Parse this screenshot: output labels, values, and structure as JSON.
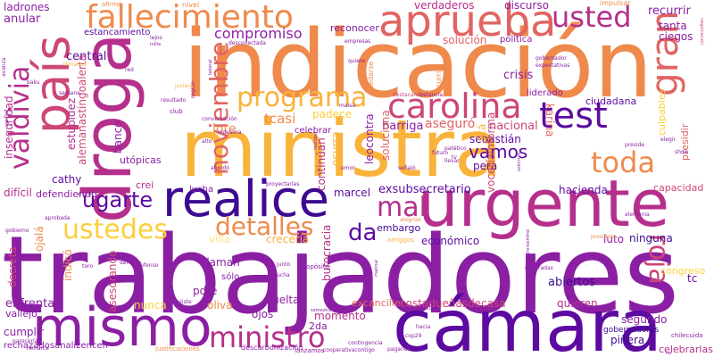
{
  "palette": {
    "darkest": "#3d0a91",
    "dark_purple": "#5c0aa0",
    "purple": "#8b1fa3",
    "magenta": "#b52f8c",
    "pink": "#cc4778",
    "coral": "#e16462",
    "orange": "#ef8a4c",
    "gold": "#f9b33a",
    "yellow": "#fccf3c",
    "pale_yellow": "#fbe585"
  },
  "words": [
    {
      "text": "trabajadores",
      "color": "purple"
    },
    {
      "text": "indicación",
      "color": "orange"
    },
    {
      "text": "ministra",
      "color": "gold"
    },
    {
      "text": "cámara",
      "color": "dark_purple"
    },
    {
      "text": "urgente",
      "color": "magenta"
    },
    {
      "text": "droga",
      "color": "magenta"
    },
    {
      "text": "país",
      "color": "pink"
    },
    {
      "text": "realice",
      "color": "darkest"
    },
    {
      "text": "mismo",
      "color": "purple"
    },
    {
      "text": "aprueba",
      "color": "coral"
    },
    {
      "text": "fallecimiento",
      "color": "orange"
    },
    {
      "text": "carolina",
      "color": "pink"
    },
    {
      "text": "test",
      "color": "dark_purple"
    },
    {
      "text": "toda",
      "color": "orange"
    },
    {
      "text": "programa",
      "color": "gold"
    },
    {
      "text": "gran",
      "color": "coral"
    },
    {
      "text": "usted",
      "color": "magenta"
    },
    {
      "text": "ministro",
      "color": "magenta"
    },
    {
      "text": "roja",
      "color": "pink"
    },
    {
      "text": "valdivia",
      "color": "magenta"
    },
    {
      "text": "noviembre",
      "color": "coral"
    },
    {
      "text": "ustedes",
      "color": "yellow"
    },
    {
      "text": "detalles",
      "color": "orange"
    },
    {
      "text": "mal",
      "color": "magenta"
    },
    {
      "text": "vamos",
      "color": "dark_purple"
    },
    {
      "text": "ugarte",
      "color": "dark_purple"
    },
    {
      "text": "da",
      "color": "dark_purple"
    },
    {
      "text": "compromiso",
      "color": "purple"
    },
    {
      "text": "ladrones",
      "color": "purple"
    },
    {
      "text": "afirmó",
      "color": "orange"
    },
    {
      "text": "nivel",
      "color": "orange"
    },
    {
      "text": "reconocer",
      "color": "purple"
    },
    {
      "text": "discurso",
      "color": "purple"
    },
    {
      "text": "verdaderos",
      "color": "magenta"
    },
    {
      "text": "impulsar",
      "color": "orange"
    },
    {
      "text": "anular",
      "color": "purple"
    },
    {
      "text": "estancamiento",
      "color": "dark_purple"
    },
    {
      "text": "recurrir",
      "color": "purple"
    },
    {
      "text": "tanta",
      "color": "purple"
    },
    {
      "text": "ciegos",
      "color": "purple"
    },
    {
      "text": "solución",
      "color": "coral"
    },
    {
      "text": "política",
      "color": "purple"
    },
    {
      "text": "central",
      "color": "dark_purple"
    },
    {
      "text": "crisis",
      "color": "purple"
    },
    {
      "text": "liderado",
      "color": "purple"
    },
    {
      "text": "ciudadana",
      "color": "dark_purple"
    },
    {
      "text": "tcasi",
      "color": "orange"
    },
    {
      "text": "padece",
      "color": "yellow"
    },
    {
      "text": "aseguró",
      "color": "coral"
    },
    {
      "text": "nacional",
      "color": "pink"
    },
    {
      "text": "barriga",
      "color": "purple"
    },
    {
      "text": "lote",
      "color": "orange"
    },
    {
      "text": "celebrar",
      "color": "purple"
    },
    {
      "text": "sebastián",
      "color": "dark_purple"
    },
    {
      "text": "utópicas",
      "color": "purple"
    },
    {
      "text": "banco",
      "color": "purple"
    },
    {
      "text": "estupidez",
      "color": "magenta"
    },
    {
      "text": "alemanastingoalerta",
      "color": "pink"
    },
    {
      "text": "karina",
      "color": "coral"
    },
    {
      "text": "culpables",
      "color": "yellow"
    },
    {
      "text": "presidir",
      "color": "coral"
    },
    {
      "text": "cathy",
      "color": "dark_purple"
    },
    {
      "text": "crei",
      "color": "magenta"
    },
    {
      "text": "marcel",
      "color": "dark_purple"
    },
    {
      "text": "exsubsecretario",
      "color": "dark_purple"
    },
    {
      "text": "hacienda",
      "color": "dark_purple"
    },
    {
      "text": "capacidad",
      "color": "pink"
    },
    {
      "text": "lucha",
      "color": "purple"
    },
    {
      "text": "difícil",
      "color": "magenta"
    },
    {
      "text": "defendiendo",
      "color": "purple"
    },
    {
      "text": "embargo",
      "color": "darkest"
    },
    {
      "text": "pera",
      "color": "dark_purple"
    },
    {
      "text": "villa",
      "color": "pale_yellow"
    },
    {
      "text": "crecería",
      "color": "gold"
    },
    {
      "text": "económico",
      "color": "dark_purple"
    },
    {
      "text": "luto",
      "color": "purple"
    },
    {
      "text": "ninguna",
      "color": "darkest"
    },
    {
      "text": "insegurídad",
      "color": "magenta"
    },
    {
      "text": "continúan",
      "color": "magenta"
    },
    {
      "text": "ocurra",
      "color": "gold"
    },
    {
      "text": "leocontra",
      "color": "purple"
    },
    {
      "text": "soluciona",
      "color": "coral"
    },
    {
      "text": "acá",
      "color": "gold"
    },
    {
      "text": "voceríainforma",
      "color": "pink"
    },
    {
      "text": "ojalá",
      "color": "orange"
    },
    {
      "text": "llaman",
      "color": "purple"
    },
    {
      "text": "indicó",
      "color": "orange"
    },
    {
      "text": "pdte",
      "color": "purple"
    },
    {
      "text": "decreta",
      "color": "pink"
    },
    {
      "text": "enfrentar",
      "color": "purple"
    },
    {
      "text": "vallejo",
      "color": "purple"
    },
    {
      "text": "burocracia",
      "color": "magenta"
    },
    {
      "text": "abiertos",
      "color": "darkest"
    },
    {
      "text": "congreso",
      "color": "yellow"
    },
    {
      "text": "nunca",
      "color": "yellow"
    },
    {
      "text": "oliva",
      "color": "orange"
    },
    {
      "text": "excanciller",
      "color": "coral"
    },
    {
      "text": "costadueñasdecasa",
      "color": "pink"
    },
    {
      "text": "quieren",
      "color": "magenta"
    },
    {
      "text": "vuelta",
      "color": "purple"
    },
    {
      "text": "ojos",
      "color": "purple"
    },
    {
      "text": "momento",
      "color": "magenta"
    },
    {
      "text": "segundo",
      "color": "purple"
    },
    {
      "text": "asesorando",
      "color": "pink"
    },
    {
      "text": "2da",
      "color": "purple"
    },
    {
      "text": "cumplir",
      "color": "purple"
    },
    {
      "text": "rechazadosanalizencen",
      "color": "purple"
    },
    {
      "text": "piñera",
      "color": "darkest"
    },
    {
      "text": "celebrarlas",
      "color": "magenta"
    },
    {
      "text": "descarbonización",
      "color": "purple"
    },
    {
      "text": "gobernadores",
      "color": "darkest"
    },
    {
      "text": "sólo",
      "color": "purple"
    },
    {
      "text": "tc",
      "color": "dark_purple"
    },
    {
      "text": "chilecuida",
      "color": "purple"
    },
    {
      "text": "pasada",
      "color": "purple"
    },
    {
      "text": "toro",
      "color": "purple"
    },
    {
      "text": "escucha",
      "color": "purple"
    },
    {
      "text": "propósito",
      "color": "purple"
    },
    {
      "text": "desconectada",
      "color": "purple"
    },
    {
      "text": "lejos",
      "color": "purple"
    },
    {
      "text": "gobernador",
      "color": "purple"
    },
    {
      "text": "expectativas",
      "color": "purple"
    },
    {
      "text": "instancia",
      "color": "purple"
    },
    {
      "text": "quiere",
      "color": "purple"
    },
    {
      "text": "conversación",
      "color": "purple"
    },
    {
      "text": "región",
      "color": "purple"
    },
    {
      "text": "industria",
      "color": "purple"
    },
    {
      "text": "abordó",
      "color": "purple"
    },
    {
      "text": "realidad",
      "color": "purple"
    },
    {
      "text": "emol",
      "color": "purple"
    },
    {
      "text": "futuro",
      "color": "purple"
    },
    {
      "text": "elegir",
      "color": "purple"
    },
    {
      "text": "show",
      "color": "purple"
    },
    {
      "text": "alemania",
      "color": "purple"
    },
    {
      "text": "viven",
      "color": "purple"
    },
    {
      "text": "sobrinos",
      "color": "purple"
    },
    {
      "text": "indefenso",
      "color": "purple"
    },
    {
      "text": "derecho",
      "color": "purple"
    },
    {
      "text": "junto",
      "color": "purple"
    },
    {
      "text": "consiste",
      "color": "purple"
    },
    {
      "text": "doctor",
      "color": "purple"
    },
    {
      "text": "semestralmente",
      "color": "purple"
    },
    {
      "text": "hacia",
      "color": "purple"
    },
    {
      "text": "cop29",
      "color": "purple"
    },
    {
      "text": "parecería",
      "color": "purple"
    },
    {
      "text": "remarca",
      "color": "purple"
    },
    {
      "text": "justificaciones",
      "color": "orange"
    },
    {
      "text": "lanzamos",
      "color": "purple"
    },
    {
      "text": "cooperativacontigo",
      "color": "purple"
    },
    {
      "text": "aprobación",
      "color": "orange"
    },
    {
      "text": "quedarse",
      "color": "orange"
    },
    {
      "text": "recurrirá",
      "color": "orange"
    },
    {
      "text": "empresas",
      "color": "purple"
    },
    {
      "text": "climatico",
      "color": "gold"
    },
    {
      "text": "javiera",
      "color": "gold"
    },
    {
      "text": "club",
      "color": "purple"
    },
    {
      "text": "semana",
      "color": "purple"
    },
    {
      "text": "alto",
      "color": "purple"
    },
    {
      "text": "maisa",
      "color": "purple"
    },
    {
      "text": "proyectarías",
      "color": "purple"
    },
    {
      "text": "laboral",
      "color": "purple"
    },
    {
      "text": "destacando",
      "color": "pink"
    },
    {
      "text": "negociación",
      "color": "pink"
    },
    {
      "text": "agenda",
      "color": "purple"
    },
    {
      "text": "avanza",
      "color": "purple"
    },
    {
      "text": "baku",
      "color": "purple"
    },
    {
      "text": "resultado",
      "color": "purple"
    },
    {
      "text": "red",
      "color": "purple"
    },
    {
      "text": "milla",
      "color": "purple"
    },
    {
      "text": "tv",
      "color": "purple"
    },
    {
      "text": "señaló",
      "color": "purple"
    },
    {
      "text": "llevar",
      "color": "purple"
    },
    {
      "text": "patético",
      "color": "purple"
    },
    {
      "text": "preside",
      "color": "purple"
    },
    {
      "text": "presidida",
      "color": "orange"
    },
    {
      "text": "alegrías",
      "color": "orange"
    },
    {
      "text": "amiggos",
      "color": "gold"
    },
    {
      "text": "gobierno",
      "color": "purple"
    },
    {
      "text": "aprobada",
      "color": "purple"
    },
    {
      "text": "quereroemfrei",
      "color": "purple"
    },
    {
      "text": "matinal",
      "color": "purple"
    },
    {
      "text": "pagando",
      "color": "purple"
    },
    {
      "text": "contingencia",
      "color": "purple"
    },
    {
      "text": "generadas",
      "color": "purple"
    },
    {
      "text": "ha",
      "color": "purple"
    }
  ]
}
